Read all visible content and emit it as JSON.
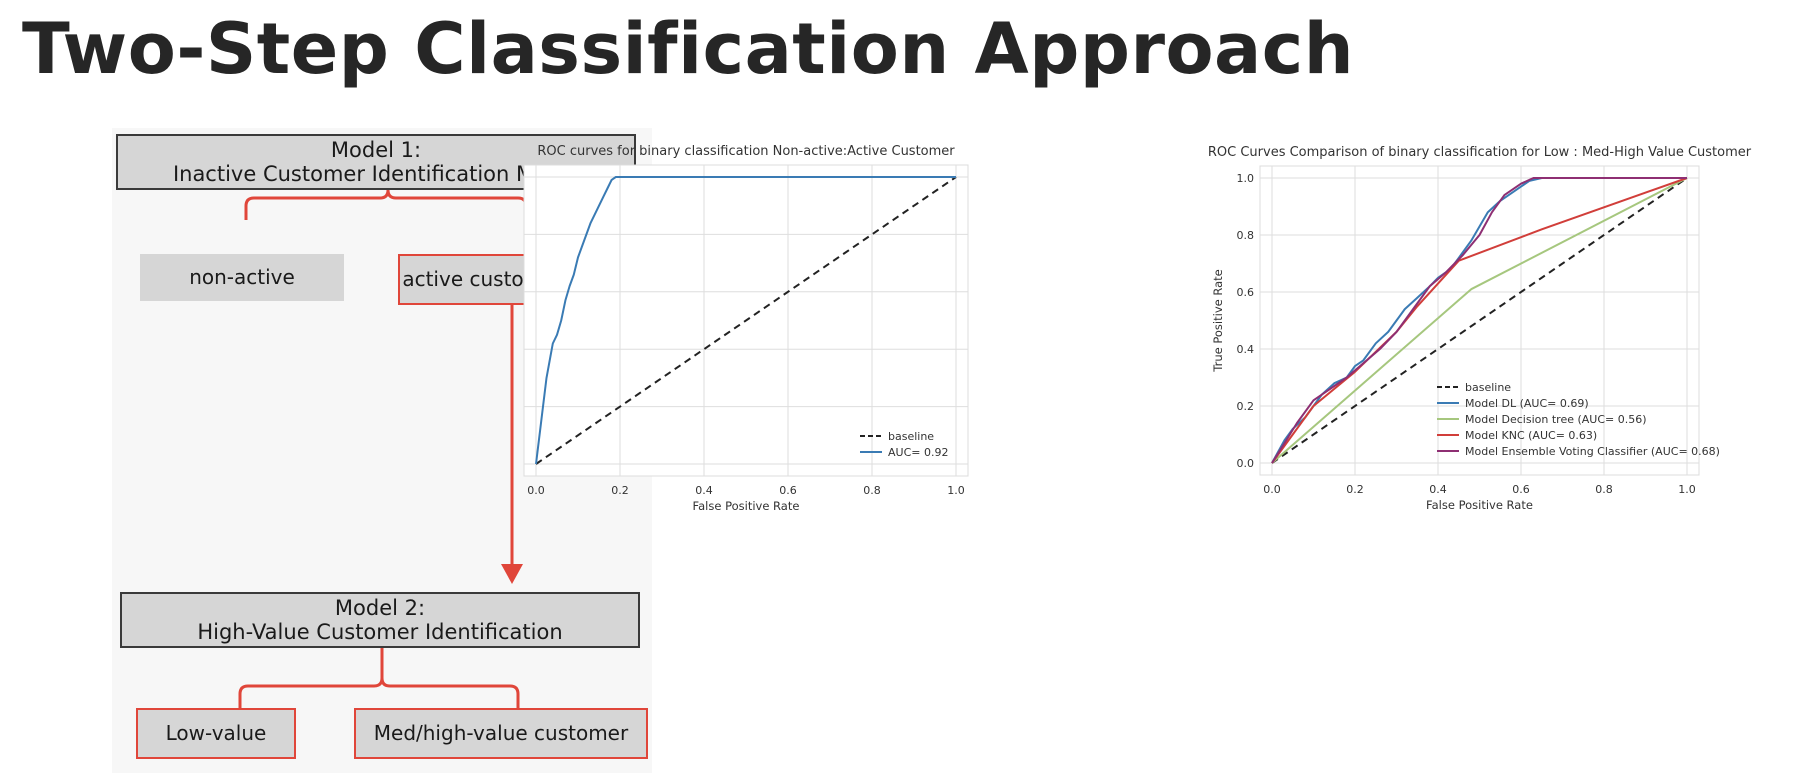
{
  "title": "Two-Step Classification Approach",
  "flowchart": {
    "model1": {
      "line1": "Model 1:",
      "line2": "Inactive Customer Identification Model"
    },
    "model1_outcomes": {
      "non_active": "non-active",
      "active": "active customer"
    },
    "model2": {
      "line1": "Model 2:",
      "line2": "High-Value Customer Identification"
    },
    "model2_outcomes": {
      "low_value": "Low-value",
      "med_high": "Med/high-value customer"
    },
    "colors": {
      "box_fill": "#d6d6d6",
      "box_border": "#3a3a3a",
      "highlight": "#e0463a"
    }
  },
  "chart_data": [
    {
      "type": "line",
      "title": "ROC curves for binary classification Non-active:Active Customer",
      "xlabel": "False Positive Rate",
      "ylabel": "",
      "xlim": [
        0,
        1
      ],
      "ylim": [
        0,
        1
      ],
      "x_ticks": [
        "0.0",
        "0.2",
        "0.4",
        "0.6",
        "0.8",
        "1.0"
      ],
      "y_ticks": [],
      "grid": true,
      "legend_position": "bottom-right",
      "series": [
        {
          "name": "baseline",
          "color": "#222222",
          "dash": true,
          "x": [
            0,
            1
          ],
          "y": [
            0,
            1
          ]
        },
        {
          "name": "AUC= 0.92",
          "color": "#3a7bb4",
          "dash": false,
          "x": [
            0,
            0.005,
            0.01,
            0.015,
            0.02,
            0.025,
            0.03,
            0.035,
            0.04,
            0.05,
            0.06,
            0.07,
            0.08,
            0.09,
            0.1,
            0.11,
            0.12,
            0.13,
            0.14,
            0.15,
            0.16,
            0.17,
            0.18,
            0.19,
            0.2,
            0.5,
            1.0
          ],
          "y": [
            0,
            0.06,
            0.12,
            0.18,
            0.24,
            0.3,
            0.34,
            0.38,
            0.42,
            0.45,
            0.5,
            0.57,
            0.62,
            0.66,
            0.72,
            0.76,
            0.8,
            0.84,
            0.87,
            0.9,
            0.93,
            0.96,
            0.99,
            1.0,
            1.0,
            1.0,
            1.0
          ]
        }
      ]
    },
    {
      "type": "line",
      "title": "ROC Curves Comparison of binary classification for Low : Med-High Value Customer",
      "xlabel": "False Positive Rate",
      "ylabel": "True Positive Rate",
      "xlim": [
        0,
        1
      ],
      "ylim": [
        0,
        1
      ],
      "x_ticks": [
        "0.0",
        "0.2",
        "0.4",
        "0.6",
        "0.8",
        "1.0"
      ],
      "y_ticks": [
        "0.0",
        "0.2",
        "0.4",
        "0.6",
        "0.8",
        "1.0"
      ],
      "grid": true,
      "legend_position": "bottom-right",
      "series": [
        {
          "name": "baseline",
          "color": "#222222",
          "dash": true,
          "x": [
            0,
            1
          ],
          "y": [
            0,
            1
          ]
        },
        {
          "name": "Model DL (AUC= 0.69)",
          "color": "#3a7bb4",
          "dash": false,
          "x": [
            0,
            0.03,
            0.05,
            0.08,
            0.1,
            0.12,
            0.15,
            0.18,
            0.2,
            0.22,
            0.25,
            0.28,
            0.3,
            0.32,
            0.35,
            0.38,
            0.4,
            0.43,
            0.45,
            0.48,
            0.5,
            0.52,
            0.55,
            0.58,
            0.6,
            0.62,
            0.65,
            0.7,
            1.0
          ],
          "y": [
            0,
            0.08,
            0.12,
            0.16,
            0.2,
            0.24,
            0.28,
            0.3,
            0.34,
            0.36,
            0.42,
            0.46,
            0.5,
            0.54,
            0.58,
            0.62,
            0.65,
            0.68,
            0.72,
            0.78,
            0.83,
            0.88,
            0.92,
            0.95,
            0.97,
            0.99,
            1.0,
            1.0,
            1.0
          ]
        },
        {
          "name": "Model Decision tree (AUC= 0.56)",
          "color": "#a6c77e",
          "dash": false,
          "x": [
            0,
            0.48,
            1.0
          ],
          "y": [
            0,
            0.61,
            1.0
          ]
        },
        {
          "name": "Model KNC (AUC= 0.63)",
          "color": "#d13e3a",
          "dash": false,
          "x": [
            0,
            0.1,
            0.2,
            0.3,
            0.35,
            0.45,
            0.65,
            1.0
          ],
          "y": [
            0,
            0.2,
            0.32,
            0.46,
            0.55,
            0.71,
            0.82,
            1.0
          ]
        },
        {
          "name": "Model Ensemble Voting Classifier (AUC= 0.68)",
          "color": "#8e2f73",
          "dash": false,
          "x": [
            0,
            0.03,
            0.06,
            0.1,
            0.14,
            0.18,
            0.22,
            0.26,
            0.3,
            0.34,
            0.38,
            0.42,
            0.46,
            0.5,
            0.53,
            0.56,
            0.6,
            0.63,
            0.66,
            1.0
          ],
          "y": [
            0,
            0.07,
            0.14,
            0.22,
            0.26,
            0.3,
            0.35,
            0.4,
            0.46,
            0.54,
            0.62,
            0.67,
            0.73,
            0.8,
            0.88,
            0.94,
            0.98,
            1.0,
            1.0,
            1.0
          ]
        }
      ]
    }
  ]
}
